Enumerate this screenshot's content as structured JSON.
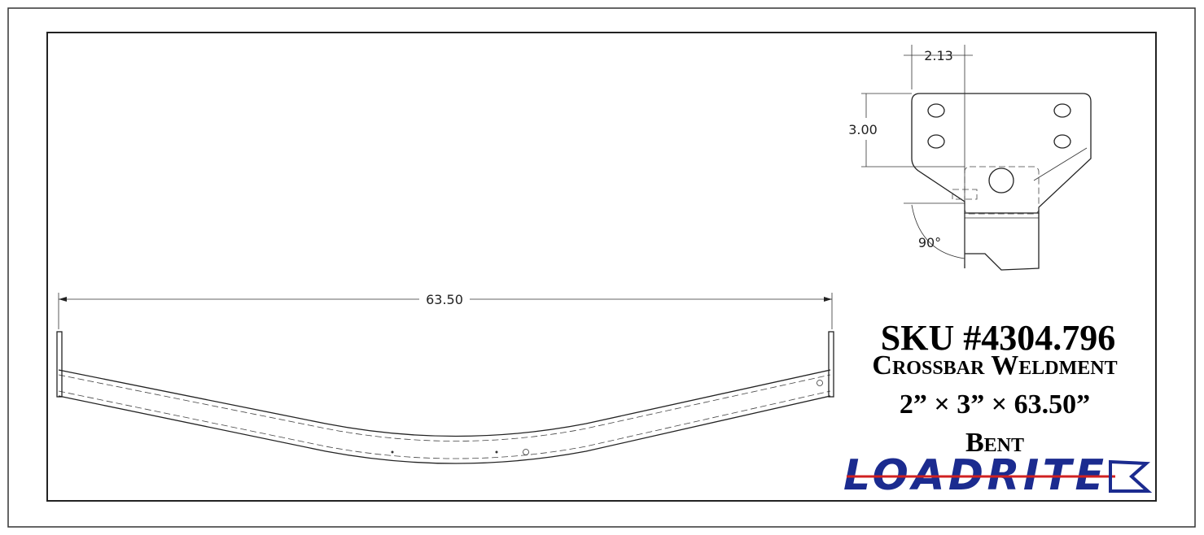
{
  "dimensions": {
    "length": "63.50",
    "width": "2.13",
    "height": "3.00",
    "angle": "90°"
  },
  "title": {
    "sku": "SKU #4304.796",
    "name": "Crossbar Weldment",
    "size": "2” × 3” × 63.50”",
    "style": "Bent"
  },
  "logo": "LOADRITE"
}
